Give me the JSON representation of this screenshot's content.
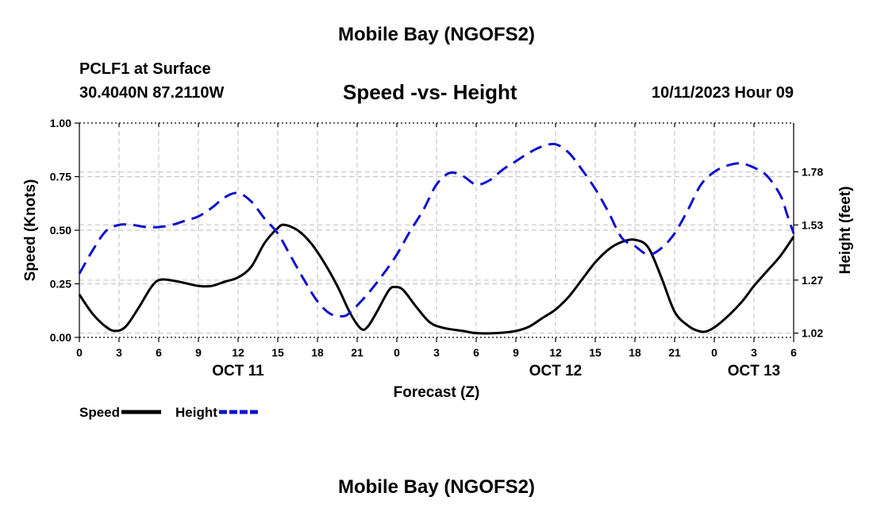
{
  "page": {
    "title_top": "Mobile Bay (NGOFS2)",
    "title_bottom": "Mobile Bay (NGOFS2)",
    "station": "PCLF1 at Surface",
    "coordinates": "30.4040N  87.2110W",
    "subtitle": "Speed -vs- Height",
    "timestamp": "10/11/2023 Hour 09"
  },
  "chart_data": {
    "type": "line",
    "title": "Speed -vs- Height",
    "xlabel": "Forecast (Z)",
    "ylabel_left": "Speed (Knots)",
    "ylabel_right": "Height (feet)",
    "x_range_hours": [
      0,
      54
    ],
    "x_ticks": [
      {
        "h": 0,
        "label": "0"
      },
      {
        "h": 3,
        "label": "3"
      },
      {
        "h": 6,
        "label": "6"
      },
      {
        "h": 9,
        "label": "9"
      },
      {
        "h": 12,
        "label": "12"
      },
      {
        "h": 15,
        "label": "15"
      },
      {
        "h": 18,
        "label": "18"
      },
      {
        "h": 21,
        "label": "21"
      },
      {
        "h": 24,
        "label": "0"
      },
      {
        "h": 27,
        "label": "3"
      },
      {
        "h": 30,
        "label": "6"
      },
      {
        "h": 33,
        "label": "9"
      },
      {
        "h": 36,
        "label": "12"
      },
      {
        "h": 39,
        "label": "15"
      },
      {
        "h": 42,
        "label": "18"
      },
      {
        "h": 45,
        "label": "21"
      },
      {
        "h": 48,
        "label": "0"
      },
      {
        "h": 51,
        "label": "3"
      },
      {
        "h": 54,
        "label": "6"
      }
    ],
    "date_labels": [
      {
        "h": 12,
        "label": "OCT 11"
      },
      {
        "h": 36,
        "label": "OCT 12"
      },
      {
        "h": 51,
        "label": "OCT 13"
      }
    ],
    "ylim_left": [
      0,
      1
    ],
    "y_ticks_left": [
      {
        "v": 0.0,
        "label": "0.00"
      },
      {
        "v": 0.25,
        "label": "0.25"
      },
      {
        "v": 0.5,
        "label": "0.50"
      },
      {
        "v": 0.75,
        "label": "0.75"
      },
      {
        "v": 1.0,
        "label": "1.00"
      }
    ],
    "ylim_right": [
      1.0,
      2.01
    ],
    "y_ticks_right": [
      {
        "v": 1.02,
        "label": "1.02"
      },
      {
        "v": 1.27,
        "label": "1.27"
      },
      {
        "v": 1.53,
        "label": "1.53"
      },
      {
        "v": 1.78,
        "label": "1.78"
      }
    ],
    "grid": true,
    "series": [
      {
        "name": "Speed",
        "axis": "left",
        "color": "#000000",
        "dash": "solid",
        "points": [
          [
            0,
            0.2
          ],
          [
            1,
            0.11
          ],
          [
            2,
            0.05
          ],
          [
            2.7,
            0.03
          ],
          [
            3.5,
            0.05
          ],
          [
            4.5,
            0.14
          ],
          [
            5.5,
            0.24
          ],
          [
            6.2,
            0.27
          ],
          [
            7.5,
            0.26
          ],
          [
            9,
            0.24
          ],
          [
            10,
            0.24
          ],
          [
            11,
            0.26
          ],
          [
            12,
            0.28
          ],
          [
            13,
            0.33
          ],
          [
            14,
            0.44
          ],
          [
            15,
            0.51
          ],
          [
            15.5,
            0.525
          ],
          [
            16.5,
            0.5
          ],
          [
            17.5,
            0.44
          ],
          [
            18.5,
            0.35
          ],
          [
            19.5,
            0.24
          ],
          [
            20.5,
            0.11
          ],
          [
            21.3,
            0.04
          ],
          [
            21.8,
            0.05
          ],
          [
            22.5,
            0.12
          ],
          [
            23.4,
            0.22
          ],
          [
            23.9,
            0.235
          ],
          [
            24.5,
            0.22
          ],
          [
            25.5,
            0.14
          ],
          [
            26.5,
            0.07
          ],
          [
            27.5,
            0.045
          ],
          [
            29,
            0.03
          ],
          [
            30,
            0.02
          ],
          [
            31.5,
            0.02
          ],
          [
            33,
            0.03
          ],
          [
            34,
            0.05
          ],
          [
            35,
            0.09
          ],
          [
            36,
            0.13
          ],
          [
            37,
            0.19
          ],
          [
            38,
            0.27
          ],
          [
            39,
            0.35
          ],
          [
            40,
            0.41
          ],
          [
            41,
            0.445
          ],
          [
            42,
            0.455
          ],
          [
            43,
            0.42
          ],
          [
            44,
            0.28
          ],
          [
            45,
            0.12
          ],
          [
            46,
            0.055
          ],
          [
            46.8,
            0.03
          ],
          [
            47.5,
            0.03
          ],
          [
            48.5,
            0.07
          ],
          [
            50,
            0.16
          ],
          [
            51,
            0.24
          ],
          [
            52,
            0.31
          ],
          [
            53,
            0.38
          ],
          [
            54,
            0.47
          ]
        ]
      },
      {
        "name": "Height",
        "axis": "right",
        "color": "#1010cc",
        "dash": "dashed",
        "points": [
          [
            0,
            1.3
          ],
          [
            1,
            1.41
          ],
          [
            2,
            1.5
          ],
          [
            3,
            1.53
          ],
          [
            4,
            1.53
          ],
          [
            5,
            1.52
          ],
          [
            6,
            1.52
          ],
          [
            7,
            1.53
          ],
          [
            8,
            1.55
          ],
          [
            9,
            1.57
          ],
          [
            10,
            1.61
          ],
          [
            11,
            1.66
          ],
          [
            12,
            1.68
          ],
          [
            13,
            1.64
          ],
          [
            14,
            1.56
          ],
          [
            15,
            1.49
          ],
          [
            16,
            1.38
          ],
          [
            17,
            1.27
          ],
          [
            18,
            1.17
          ],
          [
            19,
            1.11
          ],
          [
            20,
            1.1
          ],
          [
            20.5,
            1.12
          ],
          [
            21,
            1.15
          ],
          [
            22,
            1.22
          ],
          [
            23,
            1.3
          ],
          [
            24,
            1.39
          ],
          [
            25,
            1.5
          ],
          [
            26,
            1.6
          ],
          [
            27,
            1.72
          ],
          [
            28,
            1.775
          ],
          [
            29,
            1.76
          ],
          [
            30,
            1.72
          ],
          [
            31,
            1.74
          ],
          [
            32,
            1.79
          ],
          [
            33,
            1.83
          ],
          [
            34,
            1.87
          ],
          [
            35,
            1.9
          ],
          [
            36,
            1.91
          ],
          [
            37,
            1.87
          ],
          [
            38,
            1.79
          ],
          [
            39,
            1.7
          ],
          [
            40,
            1.59
          ],
          [
            41,
            1.47
          ],
          [
            42,
            1.43
          ],
          [
            43,
            1.39
          ],
          [
            44,
            1.42
          ],
          [
            45,
            1.49
          ],
          [
            46,
            1.6
          ],
          [
            47,
            1.72
          ],
          [
            48,
            1.78
          ],
          [
            49,
            1.81
          ],
          [
            50,
            1.82
          ],
          [
            51,
            1.8
          ],
          [
            52,
            1.76
          ],
          [
            53,
            1.67
          ],
          [
            53.5,
            1.58
          ],
          [
            54,
            1.49
          ]
        ]
      }
    ],
    "legend": [
      {
        "name": "Speed",
        "color": "#000000",
        "dash": "solid"
      },
      {
        "name": "Height",
        "color": "#1010cc",
        "dash": "dashed"
      }
    ]
  }
}
